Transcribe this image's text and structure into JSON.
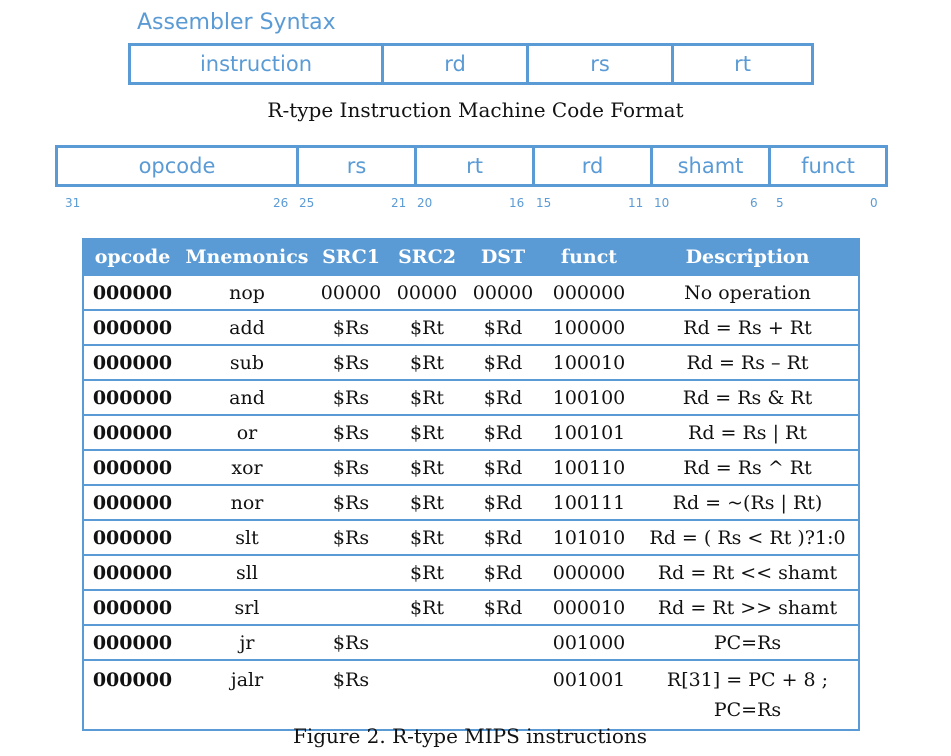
{
  "assembler": {
    "title": "Assembler Syntax",
    "fields": [
      "instruction",
      "rd",
      "rs",
      "rt"
    ]
  },
  "format_caption": "R-type Instruction Machine Code Format",
  "machine_code": {
    "fields": [
      "opcode",
      "rs",
      "rt",
      "rd",
      "shamt",
      "funct"
    ],
    "bits": [
      "31",
      "26",
      "25",
      "21",
      "20",
      "16",
      "15",
      "11",
      "10",
      "6",
      "5",
      "0"
    ]
  },
  "table": {
    "headers": [
      "opcode",
      "Mnemonics",
      "SRC1",
      "SRC2",
      "DST",
      "funct",
      "Description"
    ],
    "rows": [
      [
        "000000",
        "nop",
        "00000",
        "00000",
        "00000",
        "000000",
        "No operation"
      ],
      [
        "000000",
        "add",
        "$Rs",
        "$Rt",
        "$Rd",
        "100000",
        "Rd = Rs + Rt"
      ],
      [
        "000000",
        "sub",
        "$Rs",
        "$Rt",
        "$Rd",
        "100010",
        "Rd = Rs – Rt"
      ],
      [
        "000000",
        "and",
        "$Rs",
        "$Rt",
        "$Rd",
        "100100",
        "Rd = Rs & Rt"
      ],
      [
        "000000",
        "or",
        "$Rs",
        "$Rt",
        "$Rd",
        "100101",
        "Rd = Rs | Rt"
      ],
      [
        "000000",
        "xor",
        "$Rs",
        "$Rt",
        "$Rd",
        "100110",
        "Rd = Rs ^ Rt"
      ],
      [
        "000000",
        "nor",
        "$Rs",
        "$Rt",
        "$Rd",
        "100111",
        "Rd = ~(Rs | Rt)"
      ],
      [
        "000000",
        "slt",
        "$Rs",
        "$Rt",
        "$Rd",
        "101010",
        "Rd = ( Rs < Rt )?1:0"
      ],
      [
        "000000",
        "sll",
        "",
        "$Rt",
        "$Rd",
        "000000",
        "Rd = Rt << shamt"
      ],
      [
        "000000",
        "srl",
        "",
        "$Rt",
        "$Rd",
        "000010",
        "Rd = Rt >> shamt"
      ],
      [
        "000000",
        "jr",
        "$Rs",
        "",
        "",
        "001000",
        "PC=Rs"
      ],
      [
        "000000",
        "jalr",
        "$Rs",
        "",
        "",
        "001001",
        "R[31] = PC + 8 ;\nPC=Rs"
      ]
    ]
  },
  "figure_caption": "Figure 2. R-type MIPS instructions"
}
